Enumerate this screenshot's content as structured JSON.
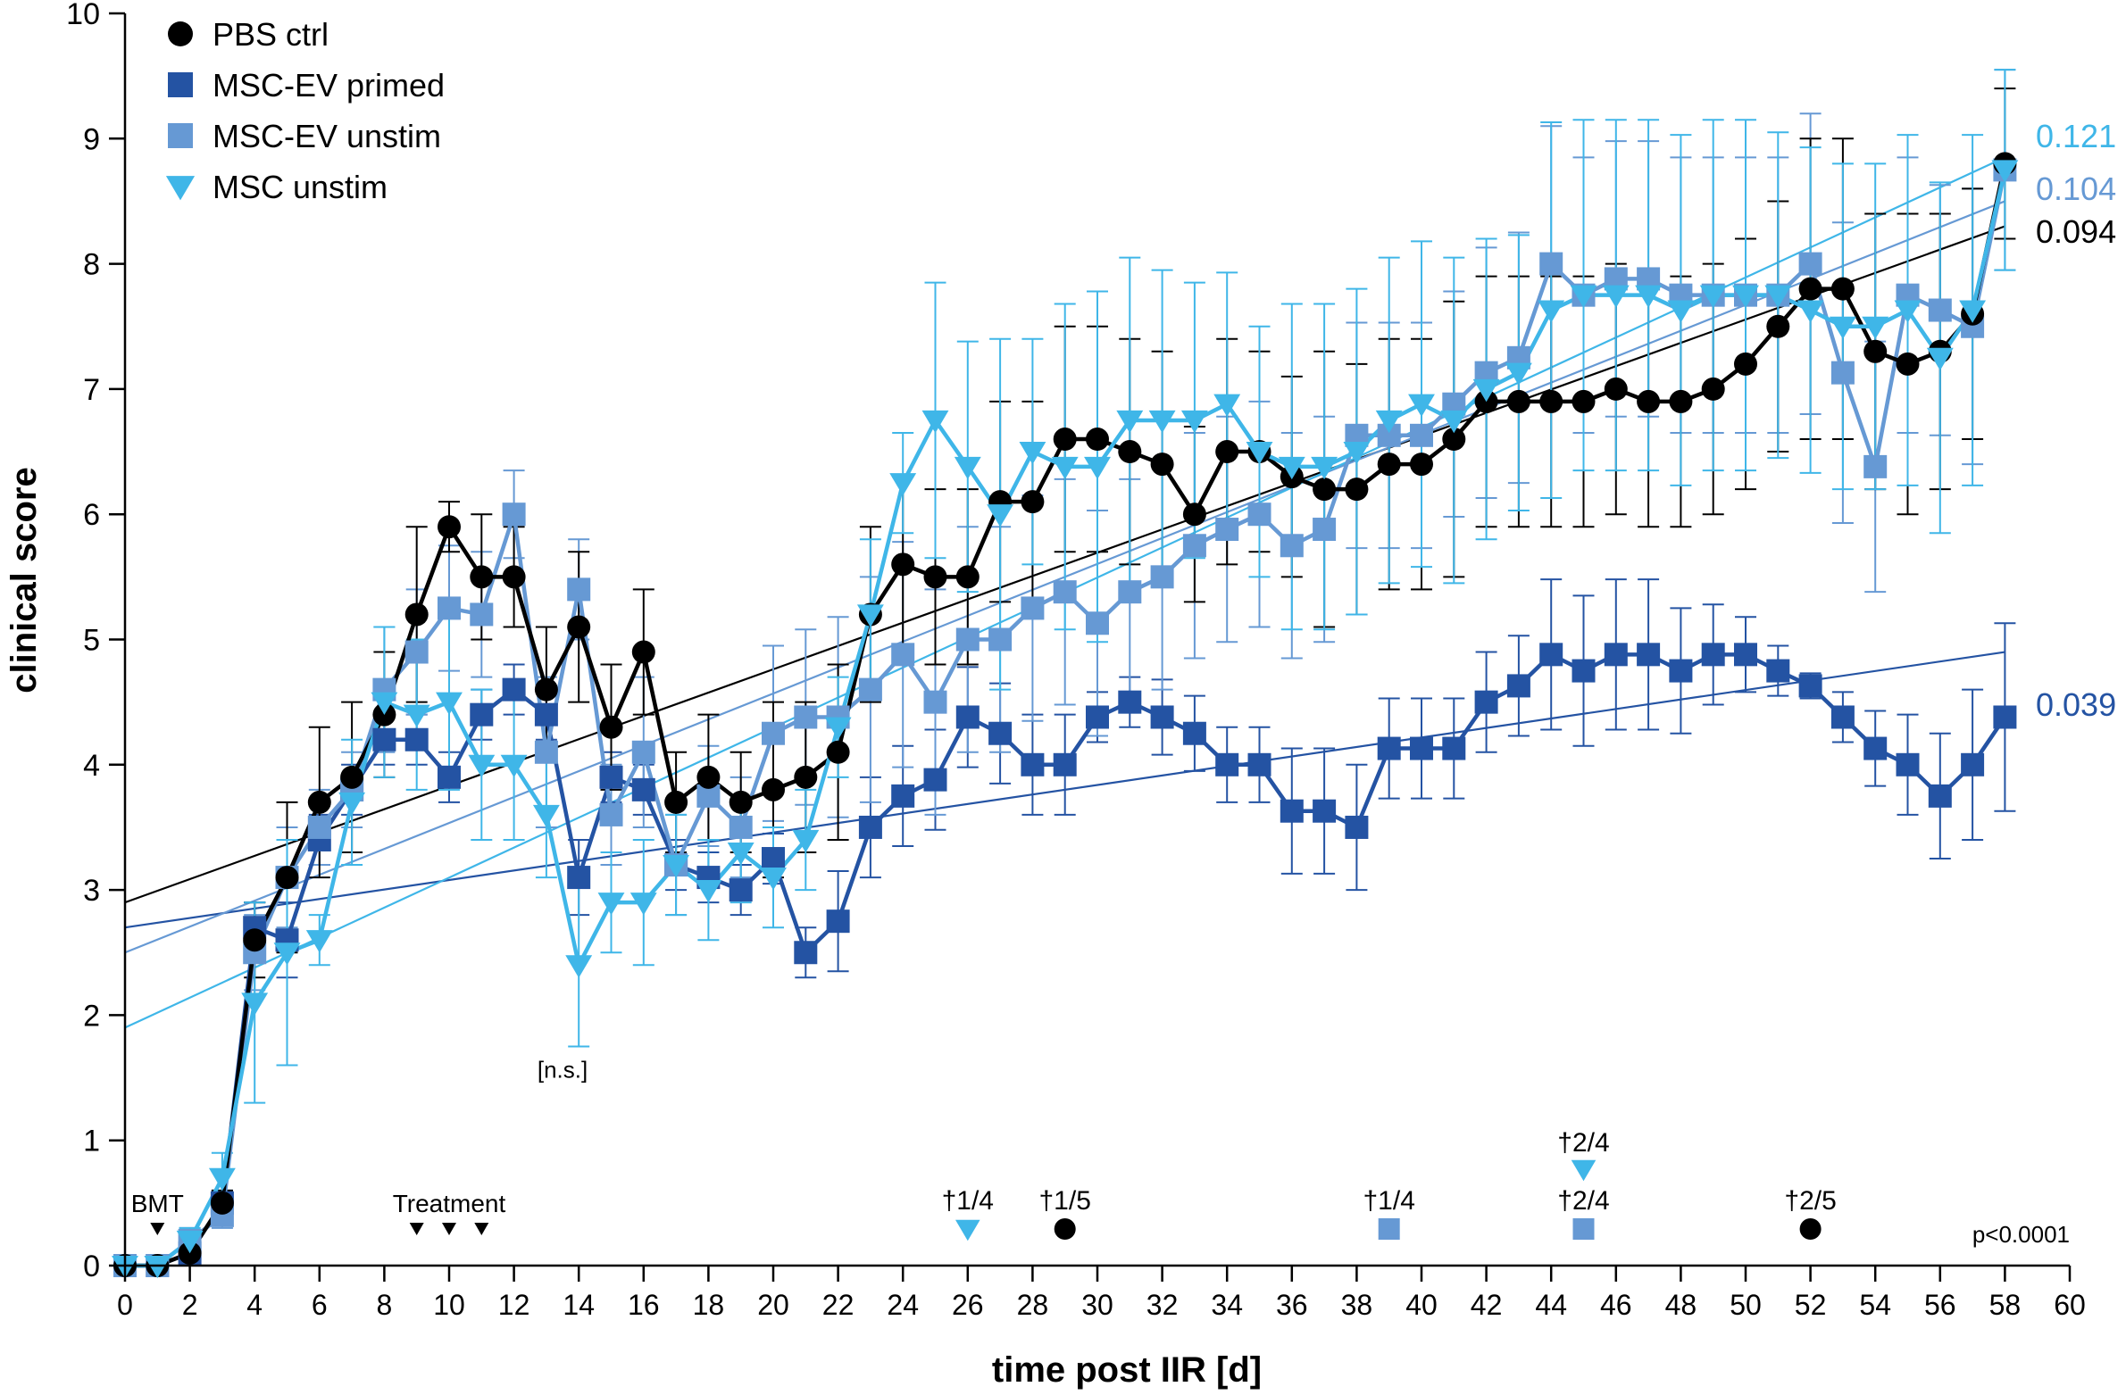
{
  "chart_data": {
    "type": "line",
    "xlabel": "time post IIR [d]",
    "ylabel": "clinical score",
    "xlim": [
      0,
      60
    ],
    "ylim": [
      0,
      10
    ],
    "xticks": [
      0,
      2,
      4,
      6,
      8,
      10,
      12,
      14,
      16,
      18,
      20,
      22,
      24,
      26,
      28,
      30,
      32,
      34,
      36,
      38,
      40,
      42,
      44,
      46,
      48,
      50,
      52,
      54,
      56,
      58,
      60
    ],
    "yticks": [
      0,
      1,
      2,
      3,
      4,
      5,
      6,
      7,
      8,
      9,
      10
    ],
    "legend_position": "top-left",
    "series": [
      {
        "name": "PBS ctrl",
        "marker": "circle",
        "color": "#000000",
        "x": [
          0,
          1,
          2,
          3,
          4,
          5,
          6,
          7,
          8,
          9,
          10,
          11,
          12,
          13,
          14,
          15,
          16,
          17,
          18,
          19,
          20,
          21,
          22,
          23,
          24,
          25,
          26,
          27,
          28,
          29,
          30,
          31,
          32,
          33,
          34,
          35,
          36,
          37,
          38,
          39,
          40,
          41,
          42,
          43,
          44,
          45,
          46,
          47,
          48,
          49,
          50,
          51,
          52,
          53,
          54,
          55,
          56,
          57,
          58
        ],
        "y": [
          0,
          0,
          0.1,
          0.5,
          2.6,
          3.1,
          3.7,
          3.9,
          4.4,
          5.2,
          5.9,
          5.5,
          5.5,
          4.6,
          5.1,
          4.3,
          4.9,
          3.7,
          3.9,
          3.7,
          3.8,
          3.9,
          4.1,
          5.2,
          5.6,
          5.5,
          5.5,
          6.1,
          6.1,
          6.6,
          6.6,
          6.5,
          6.4,
          6.0,
          6.5,
          6.5,
          6.3,
          6.2,
          6.2,
          6.4,
          6.4,
          6.6,
          6.9,
          6.9,
          6.9,
          6.9,
          7.0,
          6.9,
          6.9,
          7.0,
          7.2,
          7.5,
          7.8,
          7.8,
          7.3,
          7.2,
          7.3,
          7.6,
          8.8
        ],
        "err": [
          0,
          0,
          0,
          0.1,
          0.3,
          0.6,
          0.6,
          0.6,
          0.5,
          0.7,
          0.2,
          0.5,
          0.4,
          0.5,
          0.6,
          0.5,
          0.5,
          0.4,
          0.5,
          0.4,
          0.7,
          0.6,
          0.7,
          0.7,
          0.7,
          0.7,
          0.7,
          0.8,
          0.8,
          0.9,
          0.9,
          0.9,
          0.9,
          0.7,
          0.9,
          0.8,
          0.8,
          1.1,
          1.0,
          1.0,
          1.0,
          1.1,
          1.0,
          1.0,
          1.0,
          1.0,
          1.0,
          1.0,
          1.0,
          1.0,
          1.0,
          1.0,
          1.2,
          1.2,
          1.1,
          1.2,
          1.1,
          1.0,
          0.6
        ],
        "trend_label": "0.094",
        "trend_color": "#000000",
        "trend_start": 2.9,
        "trend_end": 8.3
      },
      {
        "name": "MSC-EV primed",
        "marker": "square",
        "color": "#2453A3",
        "x": [
          0,
          1,
          2,
          3,
          4,
          5,
          6,
          7,
          8,
          9,
          10,
          11,
          12,
          13,
          14,
          15,
          16,
          17,
          18,
          19,
          20,
          21,
          22,
          23,
          24,
          25,
          26,
          27,
          28,
          29,
          30,
          31,
          32,
          33,
          34,
          35,
          36,
          37,
          38,
          39,
          40,
          41,
          42,
          43,
          44,
          45,
          46,
          47,
          48,
          49,
          50,
          51,
          52,
          53,
          54,
          55,
          56,
          57,
          58
        ],
        "y": [
          0,
          0,
          0.1,
          0.5,
          2.7,
          2.6,
          3.4,
          3.8,
          4.2,
          4.2,
          3.9,
          4.4,
          4.6,
          4.4,
          3.1,
          3.9,
          3.8,
          3.2,
          3.1,
          3.0,
          3.25,
          2.5,
          2.75,
          3.5,
          3.75,
          3.88,
          4.38,
          4.25,
          4.0,
          4.0,
          4.38,
          4.5,
          4.38,
          4.25,
          4.0,
          4.0,
          3.63,
          3.63,
          3.5,
          4.13,
          4.13,
          4.13,
          4.5,
          4.63,
          4.88,
          4.75,
          4.88,
          4.88,
          4.75,
          4.88,
          4.88,
          4.75,
          4.63,
          4.38,
          4.13,
          4.0,
          3.75,
          4.0,
          4.38
        ],
        "err": [
          0,
          0,
          0.1,
          0.1,
          0.2,
          0.3,
          0.2,
          0.2,
          0.2,
          0.2,
          0.2,
          0.2,
          0.2,
          0.2,
          0.3,
          0.2,
          0.2,
          0.2,
          0.2,
          0.2,
          0.2,
          0.2,
          0.4,
          0.4,
          0.4,
          0.4,
          0.4,
          0.4,
          0.4,
          0.4,
          0.2,
          0.2,
          0.3,
          0.3,
          0.3,
          0.3,
          0.5,
          0.5,
          0.5,
          0.4,
          0.4,
          0.4,
          0.4,
          0.4,
          0.6,
          0.6,
          0.6,
          0.6,
          0.5,
          0.4,
          0.3,
          0.2,
          0.1,
          0.2,
          0.3,
          0.4,
          0.5,
          0.6,
          0.75
        ],
        "trend_label": "0.039",
        "trend_color": "#2453A3",
        "trend_start": 2.7,
        "trend_end": 4.9
      },
      {
        "name": "MSC-EV unstim",
        "marker": "square",
        "color": "#6699D4",
        "x": [
          0,
          1,
          2,
          3,
          4,
          5,
          6,
          7,
          8,
          9,
          10,
          11,
          12,
          13,
          14,
          15,
          16,
          17,
          18,
          19,
          20,
          21,
          22,
          23,
          24,
          25,
          26,
          27,
          28,
          29,
          30,
          31,
          32,
          33,
          34,
          35,
          36,
          37,
          38,
          39,
          40,
          41,
          42,
          43,
          44,
          45,
          46,
          47,
          48,
          49,
          50,
          51,
          52,
          53,
          54,
          55,
          56,
          57,
          58
        ],
        "y": [
          0,
          0,
          0.2,
          0.4,
          2.5,
          3.1,
          3.5,
          3.8,
          4.6,
          4.9,
          5.25,
          5.2,
          6.0,
          4.1,
          5.4,
          3.6,
          4.1,
          3.2,
          3.75,
          3.5,
          4.25,
          4.38,
          4.38,
          4.6,
          4.88,
          4.5,
          5.0,
          5.0,
          5.25,
          5.38,
          5.13,
          5.38,
          5.5,
          5.75,
          5.88,
          6.0,
          5.75,
          5.88,
          6.63,
          6.63,
          6.63,
          6.88,
          7.13,
          7.25,
          8.0,
          7.75,
          7.88,
          7.88,
          7.75,
          7.75,
          7.75,
          7.75,
          8.0,
          7.13,
          6.38,
          7.75,
          7.63,
          7.5,
          8.75
        ],
        "err": [
          0,
          0,
          0.1,
          0.1,
          0.3,
          0.4,
          0.3,
          0.3,
          0.5,
          0.5,
          0.5,
          0.5,
          0.35,
          0.6,
          0.4,
          0.4,
          0.6,
          0.4,
          0.4,
          0.4,
          0.7,
          0.7,
          0.8,
          0.9,
          0.9,
          0.9,
          0.9,
          0.9,
          0.9,
          0.9,
          0.9,
          0.9,
          0.9,
          0.9,
          0.9,
          0.9,
          0.9,
          0.9,
          0.9,
          0.9,
          0.9,
          0.9,
          1.0,
          1.0,
          1.1,
          1.1,
          1.1,
          1.1,
          1.1,
          1.1,
          1.1,
          1.1,
          1.2,
          1.2,
          1.0,
          1.1,
          1.0,
          1.1,
          0.8
        ],
        "trend_label": "0.104",
        "trend_color": "#6699D4",
        "trend_start": 2.5,
        "trend_end": 8.5
      },
      {
        "name": "MSC unstim",
        "marker": "triangle-down",
        "color": "#3FB6E8",
        "x": [
          0,
          1,
          2,
          3,
          4,
          5,
          6,
          7,
          8,
          9,
          10,
          11,
          12,
          13,
          14,
          15,
          16,
          17,
          18,
          19,
          20,
          21,
          22,
          23,
          24,
          25,
          26,
          27,
          28,
          29,
          30,
          31,
          32,
          33,
          34,
          35,
          36,
          37,
          38,
          39,
          40,
          41,
          42,
          43,
          44,
          45,
          46,
          47,
          48,
          49,
          50,
          51,
          52,
          53,
          54,
          55,
          56,
          57,
          58
        ],
        "y": [
          0,
          0,
          0.2,
          0.7,
          2.1,
          2.5,
          2.6,
          3.7,
          4.5,
          4.4,
          4.5,
          4.0,
          4.0,
          3.6,
          2.4,
          2.9,
          2.9,
          3.2,
          3.0,
          3.3,
          3.1,
          3.4,
          4.3,
          5.2,
          6.25,
          6.75,
          6.38,
          6.0,
          6.5,
          6.38,
          6.38,
          6.75,
          6.75,
          6.75,
          6.88,
          6.5,
          6.38,
          6.38,
          6.5,
          6.75,
          6.88,
          6.75,
          7.0,
          7.13,
          7.63,
          7.75,
          7.75,
          7.75,
          7.63,
          7.75,
          7.75,
          7.75,
          7.63,
          7.5,
          7.5,
          7.63,
          7.25,
          7.63,
          8.75
        ],
        "err": [
          0,
          0,
          0.1,
          0.2,
          0.8,
          0.9,
          0.2,
          0.5,
          0.6,
          0.6,
          0.7,
          0.6,
          0.6,
          0.5,
          0.65,
          0.4,
          0.5,
          0.4,
          0.4,
          0.4,
          0.4,
          0.4,
          0.4,
          0.6,
          0.4,
          1.1,
          1.0,
          1.4,
          0.9,
          1.3,
          1.4,
          1.3,
          1.2,
          1.1,
          1.05,
          1.0,
          1.3,
          1.3,
          1.3,
          1.3,
          1.3,
          1.3,
          1.2,
          1.1,
          1.5,
          1.4,
          1.4,
          1.4,
          1.4,
          1.4,
          1.4,
          1.3,
          1.3,
          1.3,
          1.3,
          1.4,
          1.4,
          1.4,
          0.8
        ],
        "trend_label": "0.121",
        "trend_color": "#3FB6E8",
        "trend_start": 1.9,
        "trend_end": 8.85
      }
    ],
    "annotations": [
      {
        "text": "[n.s.]",
        "x": 13.5,
        "y": 1.5
      },
      {
        "text": "p<0.0001",
        "x": 56.8,
        "y": 0.22
      }
    ],
    "events": [
      {
        "label": "BMT",
        "x": 1,
        "arrows": [
          1
        ]
      },
      {
        "label": "Treatment",
        "x": 10,
        "arrows": [
          9,
          10,
          11
        ]
      }
    ],
    "deaths": [
      {
        "label": "†1/4",
        "x": 26,
        "marker": "triangle-down",
        "color": "#3FB6E8",
        "level": 1
      },
      {
        "label": "†1/5",
        "x": 29,
        "marker": "circle",
        "color": "#000000",
        "level": 1
      },
      {
        "label": "†1/4",
        "x": 39,
        "marker": "square",
        "color": "#6699D4",
        "level": 1
      },
      {
        "label": "†2/4",
        "x": 45,
        "marker": "square",
        "color": "#6699D4",
        "level": 1
      },
      {
        "label": "†2/4",
        "x": 45,
        "marker": "triangle-down",
        "color": "#3FB6E8",
        "level": 2
      },
      {
        "label": "†2/5",
        "x": 52,
        "marker": "circle",
        "color": "#000000",
        "level": 1
      }
    ]
  }
}
